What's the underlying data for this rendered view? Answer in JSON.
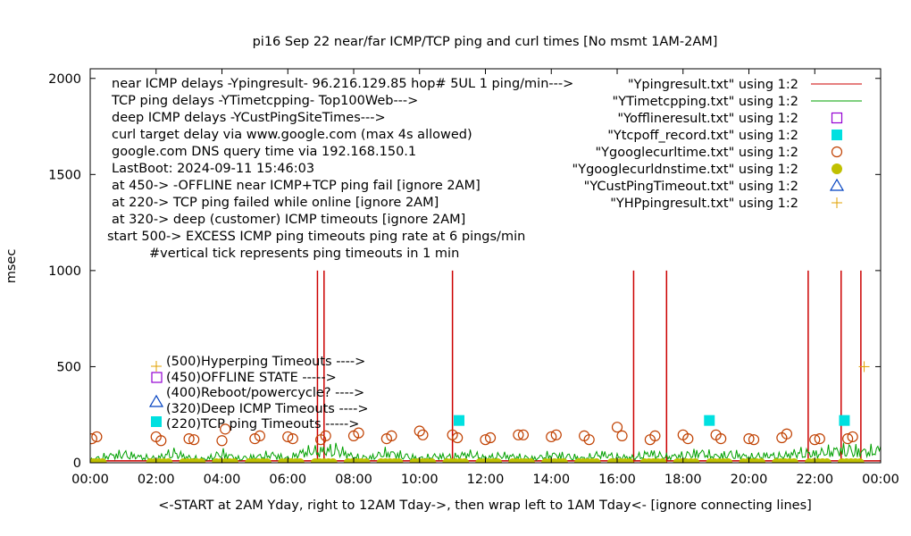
{
  "chart_data": {
    "type": "line",
    "title": "pi16 Sep 22  near/far ICMP/TCP ping and curl times [No msmt 1AM-2AM]",
    "xlabel": "<-START at 2AM Yday, right to 12AM Tday->, then wrap left to 1AM Tday<- [ignore connecting lines]",
    "ylabel": "msec",
    "xlim": [
      0,
      24
    ],
    "ylim": [
      0,
      2050
    ],
    "xticks": [
      0,
      2,
      4,
      6,
      8,
      10,
      12,
      14,
      16,
      18,
      20,
      22,
      24
    ],
    "xtick_labels": [
      "00:00",
      "02:00",
      "04:00",
      "06:00",
      "08:00",
      "10:00",
      "12:00",
      "14:00",
      "16:00",
      "18:00",
      "20:00",
      "22:00",
      "00:00"
    ],
    "yticks": [
      0,
      500,
      1000,
      1500,
      2000
    ],
    "ytick_labels": [
      "0",
      "500",
      "1000",
      "1500",
      "2000"
    ],
    "legend_position": "top-right",
    "info_lines": [
      "near ICMP delays -Ypingresult- 96.216.129.85 hop# 5UL 1 ping/min--->",
      "TCP ping delays -YTimetcpping- Top100Web--->",
      "deep ICMP delays -YCustPingSiteTimes--->",
      "curl target delay via www.google.com (max 4s allowed)",
      "google.com DNS query time via 192.168.150.1",
      "LastBoot: 2024-09-11 15:46:03",
      "at 450-> -OFFLINE near ICMP+TCP ping fail [ignore 2AM]",
      "at 220-> TCP ping failed while online [ignore 2AM]",
      "at 320-> deep (customer) ICMP timeouts [ignore 2AM]",
      "start 500-> EXCESS ICMP ping timeouts ping rate at 6 pings/min",
      "#vertical tick represents ping timeouts in 1 min"
    ],
    "key_lines": [
      "(500)Hyperping Timeouts ---->",
      "(450)OFFLINE STATE ----->",
      "(400)Reboot/powercycle? ---->",
      "(320)Deep ICMP Timeouts ---->",
      "(220)TCP ping Timeouts ----->"
    ],
    "series": [
      {
        "name": "\"Ypingresult.txt\" using 1:2",
        "style": "line",
        "color": "#cc0000",
        "baseline": 10,
        "spikes": [
          [
            6.9,
            1000
          ],
          [
            7.1,
            1000
          ],
          [
            11.0,
            1000
          ],
          [
            16.5,
            1000
          ],
          [
            17.5,
            1000
          ],
          [
            21.8,
            1000
          ],
          [
            22.8,
            1000
          ],
          [
            23.4,
            1000
          ]
        ]
      },
      {
        "name": "\"YTimetcpping.txt\" using 1:2",
        "style": "line",
        "color": "#00a000",
        "x": [
          0,
          0.5,
          1.0,
          1.5,
          2.0,
          2.5,
          3.0,
          3.5,
          4.0,
          4.5,
          5.0,
          5.5,
          6.0,
          6.5,
          7.0,
          7.5,
          8.0,
          8.5,
          9.0,
          9.5,
          10.0,
          10.5,
          11.0,
          11.5,
          12.0,
          12.5,
          13.0,
          13.5,
          14.0,
          14.5,
          15.0,
          15.5,
          16.0,
          16.5,
          17.0,
          17.5,
          18.0,
          18.5,
          19.0,
          19.5,
          20.0,
          20.5,
          21.0,
          21.5,
          22.0,
          22.5,
          23.0,
          23.5,
          24.0
        ],
        "values": [
          20,
          45,
          60,
          40,
          30,
          70,
          35,
          25,
          65,
          30,
          40,
          55,
          30,
          75,
          80,
          90,
          40,
          35,
          70,
          50,
          30,
          45,
          40,
          60,
          35,
          50,
          40,
          30,
          55,
          45,
          30,
          60,
          40,
          35,
          65,
          40,
          50,
          70,
          45,
          60,
          40,
          50,
          45,
          70,
          60,
          80,
          90,
          75,
          85
        ]
      },
      {
        "name": "\"Yofflineresult.txt\" using 1:2",
        "style": "open-square",
        "color": "#9400d3",
        "x": [],
        "values": []
      },
      {
        "name": "\"Ytcpoff_record.txt\" using 1:2",
        "style": "filled-square",
        "color": "#00e0e0",
        "x": [
          11.2,
          18.8,
          22.9
        ],
        "values": [
          220,
          220,
          220
        ]
      },
      {
        "name": "\"Ygooglecurltime.txt\" using 1:2",
        "style": "open-circle",
        "color": "#c04000",
        "x": [
          0.05,
          0.2,
          2.0,
          2.15,
          3.0,
          3.15,
          4.0,
          4.1,
          5.0,
          5.15,
          6.0,
          6.15,
          7.0,
          7.15,
          8.0,
          8.15,
          9.0,
          9.15,
          10.0,
          10.1,
          11.0,
          11.15,
          12.0,
          12.15,
          13.0,
          13.15,
          14.0,
          14.15,
          15.0,
          15.15,
          16.0,
          16.15,
          17.0,
          17.15,
          18.0,
          18.15,
          19.0,
          19.15,
          20.0,
          20.15,
          21.0,
          21.15,
          22.0,
          22.15,
          23.0,
          23.15
        ],
        "values": [
          125,
          135,
          135,
          115,
          125,
          120,
          115,
          175,
          125,
          140,
          135,
          125,
          120,
          140,
          140,
          155,
          125,
          140,
          165,
          145,
          145,
          130,
          120,
          130,
          145,
          145,
          135,
          145,
          140,
          120,
          185,
          140,
          120,
          140,
          145,
          125,
          145,
          125,
          125,
          120,
          130,
          150,
          120,
          125,
          125,
          135
        ]
      },
      {
        "name": "\"Ygooglecurldnstime.txt\" using 1:2",
        "style": "filled-circle",
        "color": "#c0c000",
        "x": [
          0.1,
          2.1,
          3.1,
          4.1,
          5.1,
          6.1,
          7.1,
          8.1,
          9.1,
          10.1,
          11.1,
          12.1,
          13.1,
          14.1,
          15.1,
          16.1,
          17.1,
          18.1,
          19.1,
          20.1,
          21.1,
          22.1,
          23.1
        ],
        "values": [
          0,
          0,
          0,
          0,
          0,
          0,
          0,
          0,
          0,
          0,
          0,
          0,
          0,
          0,
          0,
          0,
          0,
          0,
          0,
          0,
          0,
          0,
          0
        ]
      },
      {
        "name": "\"YCustPingTimeout.txt\" using 1:2",
        "style": "open-triangle",
        "color": "#0040c0",
        "x": [],
        "values": []
      },
      {
        "name": "\"YHPpingresult.txt\" using 1:2",
        "style": "plus",
        "color": "#e0a000",
        "x": [
          23.5
        ],
        "values": [
          500
        ]
      }
    ]
  }
}
